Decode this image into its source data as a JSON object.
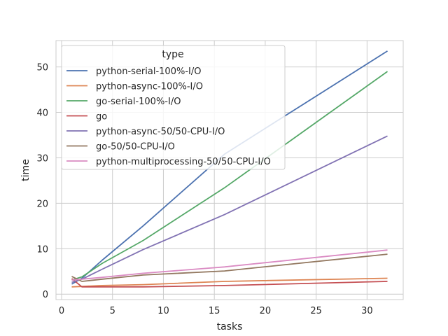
{
  "chart_data": {
    "type": "line",
    "title": "",
    "xlabel": "tasks",
    "ylabel": "time",
    "xlim": [
      -0.55,
      33.55
    ],
    "ylim": [
      -1.2,
      55.8
    ],
    "xticks": [
      0,
      5,
      10,
      15,
      20,
      25,
      30
    ],
    "yticks": [
      0,
      10,
      20,
      30,
      40,
      50
    ],
    "grid": true,
    "legend": {
      "title": "type",
      "placement": "top-left"
    },
    "series": [
      {
        "name": "python-serial-100%-I/O",
        "color": "#4c72b0",
        "x": [
          1,
          2,
          4,
          8,
          16,
          32
        ],
        "y": [
          2.2,
          3.5,
          7.5,
          15.0,
          30.8,
          53.5
        ]
      },
      {
        "name": "python-async-100%-I/O",
        "color": "#dd8452",
        "x": [
          1,
          2,
          4,
          8,
          16,
          32
        ],
        "y": [
          1.6,
          1.7,
          1.9,
          2.1,
          2.8,
          3.5
        ]
      },
      {
        "name": "go-serial-100%-I/O",
        "color": "#55a868",
        "x": [
          1,
          2,
          4,
          8,
          16,
          32
        ],
        "y": [
          3.1,
          3.8,
          6.8,
          11.8,
          23.4,
          49.0
        ]
      },
      {
        "name": "go",
        "color": "#c44e52",
        "x": [
          1,
          2,
          4,
          8,
          16,
          32
        ],
        "y": [
          3.4,
          1.6,
          1.6,
          1.6,
          1.9,
          2.8
        ]
      },
      {
        "name": "python-async-50/50-CPU-I/O",
        "color": "#8172b3",
        "x": [
          1,
          2,
          4,
          8,
          16,
          32
        ],
        "y": [
          2.6,
          3.3,
          5.5,
          9.8,
          17.5,
          34.8
        ]
      },
      {
        "name": "go-50/50-CPU-I/O",
        "color": "#937860",
        "x": [
          1,
          2,
          4,
          8,
          16,
          32
        ],
        "y": [
          3.9,
          2.8,
          3.3,
          4.2,
          5.1,
          8.8
        ]
      },
      {
        "name": "python-multiprocessing-50/50-CPU-I/O",
        "color": "#da8bc3",
        "x": [
          1,
          2,
          4,
          8,
          16,
          32
        ],
        "y": [
          3.1,
          3.3,
          3.7,
          4.6,
          6.0,
          9.7
        ]
      }
    ]
  }
}
